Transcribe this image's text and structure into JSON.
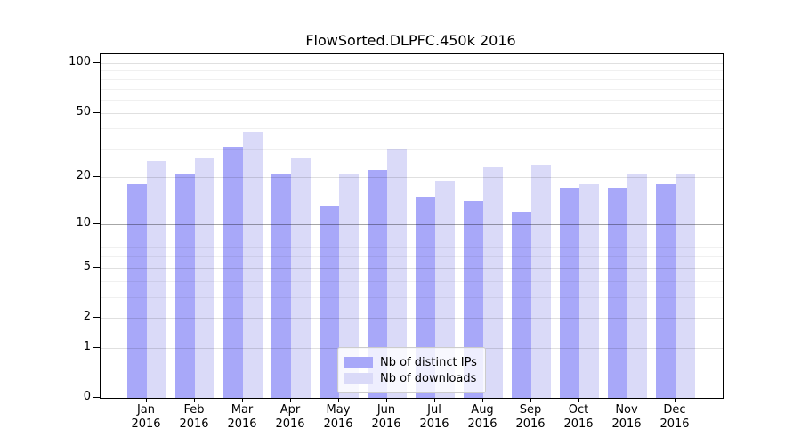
{
  "chart_data": {
    "type": "bar",
    "title": "FlowSorted.DLPFC.450k 2016",
    "categories": [
      "Jan",
      "Feb",
      "Mar",
      "Apr",
      "May",
      "Jun",
      "Jul",
      "Aug",
      "Sep",
      "Oct",
      "Nov",
      "Dec"
    ],
    "year_label": "2016",
    "series": [
      {
        "name": "Nb of distinct IPs",
        "color": "#a8a8f9",
        "values": [
          18,
          21,
          31,
          21,
          13,
          22,
          15,
          14,
          12,
          17,
          17,
          18
        ]
      },
      {
        "name": "Nb of downloads",
        "color": "#dadaf8",
        "values": [
          25,
          26,
          38,
          26,
          21,
          30,
          19,
          23,
          24,
          18,
          21,
          21
        ]
      }
    ],
    "xlabel": "",
    "ylabel": "",
    "yscale": "log1p",
    "ylim": [
      0,
      113
    ],
    "yticks": [
      0,
      1,
      2,
      5,
      10,
      20,
      50,
      100
    ],
    "yticks_minor": [
      3,
      4,
      6,
      7,
      8,
      9,
      30,
      40,
      60,
      70,
      80,
      90
    ],
    "grid": "on",
    "emphasis_gridline": 10,
    "legend_position": "inside-bottom-center"
  }
}
